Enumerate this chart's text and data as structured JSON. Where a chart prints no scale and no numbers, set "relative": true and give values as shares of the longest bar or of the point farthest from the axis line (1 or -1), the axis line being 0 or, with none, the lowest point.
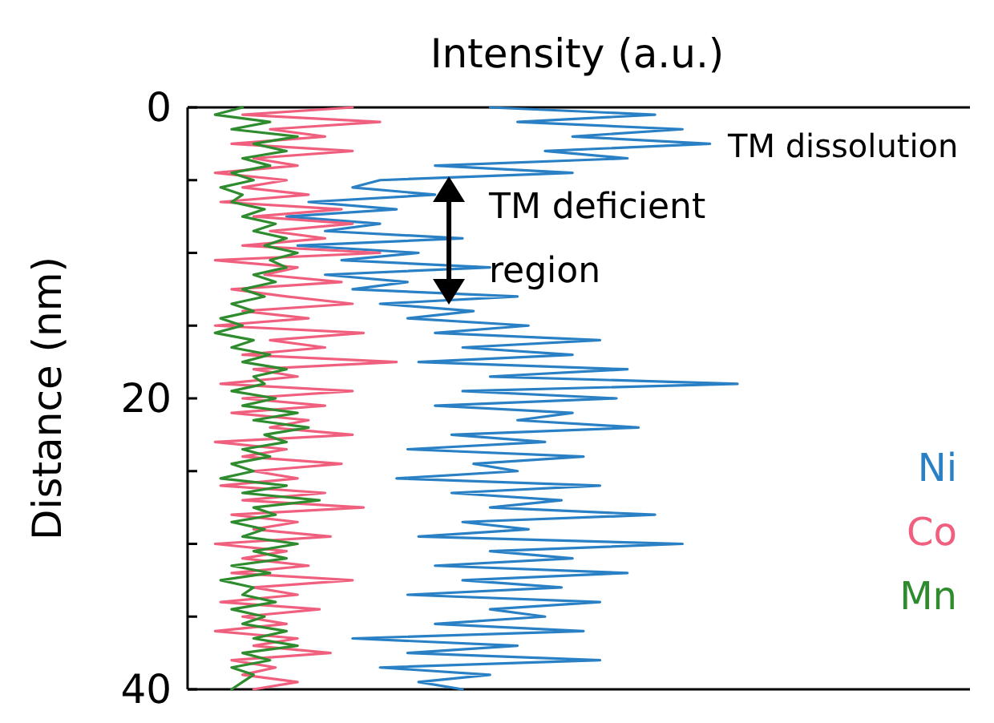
{
  "chart_data": {
    "type": "line",
    "orientation": "horizontal",
    "relative": true,
    "xlabel": "Intensity (a.u.)",
    "ylabel": "Distance (nm)",
    "ylim": [
      40,
      0
    ],
    "yticks": [
      0,
      {
        "value": 5,
        "label": null
      },
      {
        "value": 10,
        "label": null
      },
      {
        "value": 15,
        "label": null
      },
      20,
      {
        "value": 25,
        "label": null
      },
      {
        "value": 30,
        "label": null
      },
      {
        "value": 35,
        "label": null
      },
      40
    ],
    "legend": "bottom right",
    "annotations": [
      "TM dissolution",
      "TM deficient region"
    ],
    "x": [
      0,
      0.5,
      1,
      1.5,
      2,
      2.5,
      3,
      3.5,
      4,
      4.5,
      5,
      5.5,
      6,
      6.5,
      7,
      7.5,
      8,
      8.5,
      9,
      9.5,
      10,
      10.5,
      11,
      11.5,
      12,
      12.5,
      13,
      13.5,
      14,
      14.5,
      15,
      15.5,
      16,
      16.5,
      17,
      17.5,
      18,
      18.5,
      19,
      19.5,
      20,
      20.5,
      21,
      21.5,
      22,
      22.5,
      23,
      23.5,
      24,
      24.5,
      25,
      25.5,
      26,
      26.5,
      27,
      27.5,
      28,
      28.5,
      29,
      29.5,
      30,
      30.5,
      31,
      31.5,
      32,
      32.5,
      33,
      33.5,
      34,
      34.5,
      35,
      35.5,
      36,
      36.5,
      37,
      37.5,
      38,
      38.5,
      39,
      39.5,
      40
    ],
    "series": [
      {
        "name": "Ni",
        "color": "#2a80c4",
        "values": [
          0.55,
          0.85,
          0.6,
          0.9,
          0.7,
          0.95,
          0.65,
          0.8,
          0.45,
          0.7,
          0.35,
          0.3,
          0.45,
          0.22,
          0.38,
          0.18,
          0.35,
          0.25,
          0.5,
          0.2,
          0.42,
          0.28,
          0.55,
          0.25,
          0.4,
          0.3,
          0.6,
          0.35,
          0.52,
          0.4,
          0.62,
          0.45,
          0.75,
          0.5,
          0.7,
          0.42,
          0.8,
          0.55,
          1,
          0.5,
          0.78,
          0.45,
          0.7,
          0.6,
          0.82,
          0.48,
          0.65,
          0.4,
          0.72,
          0.52,
          0.6,
          0.38,
          0.75,
          0.48,
          0.68,
          0.55,
          0.85,
          0.5,
          0.62,
          0.42,
          0.9,
          0.55,
          0.7,
          0.45,
          0.8,
          0.5,
          0.68,
          0.4,
          0.75,
          0.55,
          0.65,
          0.45,
          0.72,
          0.3,
          0.6,
          0.4,
          0.75,
          0.35,
          0.55,
          0.42,
          0.5
        ]
      },
      {
        "name": "Co",
        "color": "#f0607e",
        "values": [
          0.3,
          0.1,
          0.35,
          0.15,
          0.25,
          0.08,
          0.3,
          0.12,
          0.2,
          0.05,
          0.18,
          0.1,
          0.22,
          0.06,
          0.28,
          0.12,
          0.3,
          0.15,
          0.25,
          0.1,
          0.35,
          0.05,
          0.2,
          0.14,
          0.28,
          0.08,
          0.18,
          0.3,
          0.1,
          0.22,
          0.05,
          0.32,
          0.15,
          0.25,
          0.1,
          0.38,
          0.12,
          0.2,
          0.06,
          0.3,
          0.1,
          0.25,
          0.08,
          0.22,
          0.15,
          0.3,
          0.05,
          0.18,
          0.1,
          0.28,
          0.12,
          0.2,
          0.06,
          0.25,
          0.1,
          0.32,
          0.08,
          0.2,
          0.12,
          0.26,
          0.05,
          0.18,
          0.1,
          0.22,
          0.08,
          0.3,
          0.12,
          0.2,
          0.06,
          0.24,
          0.1,
          0.18,
          0.05,
          0.2,
          0.12,
          0.26,
          0.08,
          0.16,
          0.1,
          0.2,
          0.12
        ]
      },
      {
        "name": "Mn",
        "color": "#2e8b2e",
        "values": [
          0.1,
          0.05,
          0.15,
          0.08,
          0.2,
          0.12,
          0.18,
          0.1,
          0.15,
          0.08,
          0.12,
          0.06,
          0.1,
          0.08,
          0.14,
          0.1,
          0.16,
          0.12,
          0.18,
          0.14,
          0.2,
          0.15,
          0.18,
          0.12,
          0.16,
          0.1,
          0.14,
          0.08,
          0.12,
          0.06,
          0.1,
          0.05,
          0.12,
          0.08,
          0.15,
          0.1,
          0.18,
          0.12,
          0.14,
          0.08,
          0.16,
          0.1,
          0.2,
          0.12,
          0.22,
          0.14,
          0.18,
          0.1,
          0.15,
          0.08,
          0.12,
          0.06,
          0.18,
          0.1,
          0.24,
          0.12,
          0.16,
          0.08,
          0.14,
          0.1,
          0.2,
          0.12,
          0.18,
          0.08,
          0.15,
          0.06,
          0.12,
          0.1,
          0.16,
          0.08,
          0.14,
          0.1,
          0.18,
          0.12,
          0.2,
          0.1,
          0.15,
          0.08,
          0.12,
          0.1,
          0.08
        ]
      }
    ]
  }
}
